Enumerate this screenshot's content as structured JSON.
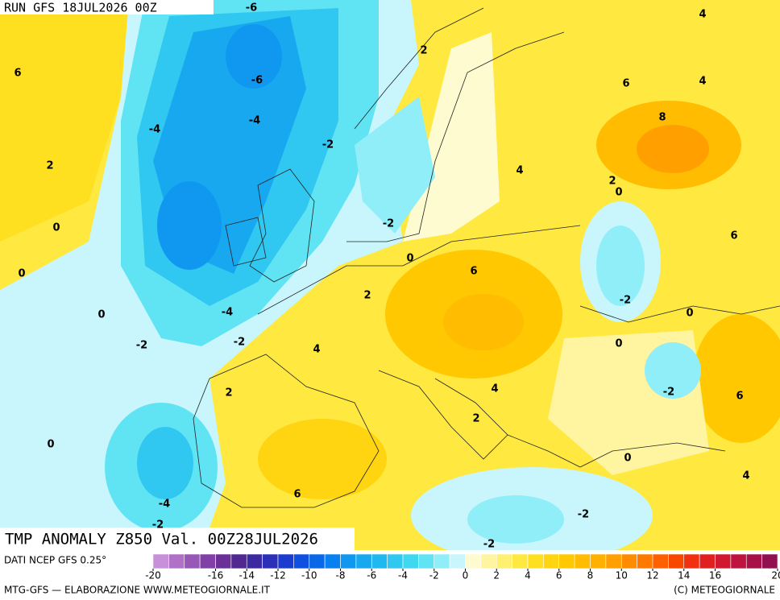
{
  "header": "RUN GFS 18JUL2026 00Z",
  "title": "TMP ANOMALY Z850 Val. 00Z28JUL2026",
  "source": "DATI NCEP GFS 0.25°",
  "footer_left": "MTG-GFS — ELABORAZIONE WWW.METEOGIORNALE.IT",
  "footer_right": "(C) METEOGIORNALE",
  "colorbar": {
    "range": [
      -20,
      20
    ],
    "ticks": [
      -20,
      -16,
      -14,
      -12,
      -10,
      -8,
      -6,
      -4,
      -2,
      0,
      2,
      4,
      6,
      8,
      10,
      12,
      14,
      16,
      20
    ],
    "colors": [
      "#c890d8",
      "#b070c8",
      "#9858b8",
      "#8040a8",
      "#6a3098",
      "#502890",
      "#3c2aa0",
      "#2c30b8",
      "#1c3cd0",
      "#1050e0",
      "#0868e8",
      "#0880f0",
      "#1098f0",
      "#18a8f0",
      "#20b8f0",
      "#30c8f0",
      "#40d8f0",
      "#60e4f4",
      "#90eef8",
      "#c8f6fc",
      "#fffbd0",
      "#fff4a0",
      "#fff070",
      "#ffe840",
      "#ffe020",
      "#ffd410",
      "#ffc800",
      "#ffbc00",
      "#ffb000",
      "#ffa000",
      "#ff8c00",
      "#ff7800",
      "#ff6000",
      "#f84800",
      "#f03010",
      "#e02020",
      "#d01830",
      "#c01440",
      "#a81048",
      "#901050"
    ]
  },
  "contour_labels": [
    -6,
    -6,
    4,
    6,
    2,
    6,
    4,
    -4,
    -4,
    8,
    -2,
    2,
    4,
    2,
    0,
    0,
    -2,
    6,
    0,
    0,
    6,
    2,
    -2,
    -4,
    0,
    0,
    -2,
    -2,
    4,
    0,
    -2,
    6,
    2,
    4,
    2,
    0,
    0,
    4,
    6,
    -4,
    -2,
    -2,
    -2
  ]
}
